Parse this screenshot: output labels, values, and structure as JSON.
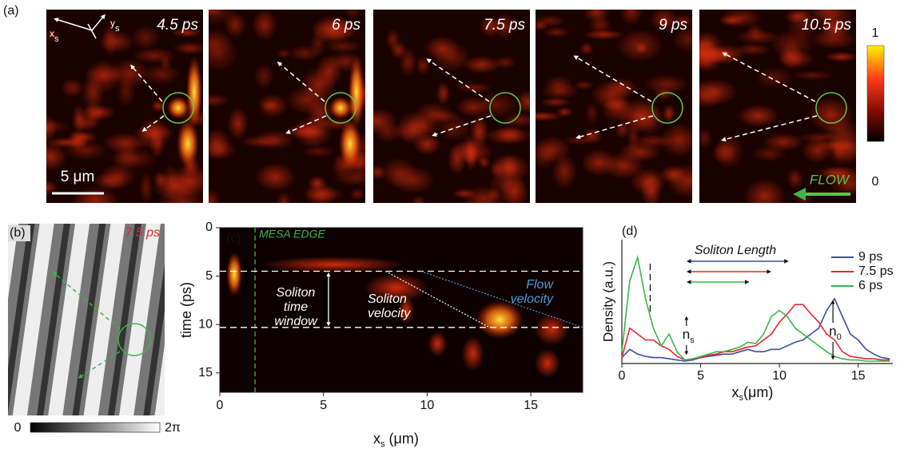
{
  "panel_a": {
    "label": "(a)",
    "frames": [
      "4.5 ps",
      "6 ps",
      "7.5 ps",
      "9 ps",
      "10.5 ps"
    ],
    "axis_x": "x",
    "axis_x_sub": "s",
    "axis_y": "y",
    "axis_y_sub": "s",
    "scale_bar": "5 μm",
    "flow": "FLOW",
    "colorbar_max": "1",
    "colorbar_min": "0"
  },
  "panel_b": {
    "label": "(b)",
    "time": "7.5 ps",
    "colorbar_min": "0",
    "colorbar_max": "2π"
  },
  "chart_data": [
    {
      "type": "heatmap",
      "label": "(c)",
      "xlabel": "x",
      "xlabel_sub": "s",
      "xlabel_unit": " (μm)",
      "ylabel": "time (ps)",
      "xlim": [
        0,
        17.5
      ],
      "xticks": [
        0,
        5,
        10,
        15
      ],
      "ylim": [
        0,
        17
      ],
      "yticks": [
        0,
        5,
        10,
        15
      ],
      "y_inverted": true,
      "mesa_edge": {
        "label": "MESA EDGE",
        "x": 1.7,
        "color": "#3cb54a"
      },
      "time_window": {
        "label": [
          "Soliton",
          "time",
          "window"
        ],
        "values": [
          4.5,
          10.3
        ]
      },
      "soliton_velocity": {
        "label": [
          "Soliton",
          "velocity"
        ],
        "x": [
          8,
          13
        ],
        "y": [
          4.5,
          10.3
        ]
      },
      "flow_velocity": {
        "label": [
          "Flow",
          "velocity"
        ],
        "x": [
          9.7,
          17.5
        ],
        "y": [
          4.5,
          10.3
        ],
        "color": "#4f9ad6"
      }
    },
    {
      "type": "line",
      "label": "(d)",
      "xlabel": "x",
      "xlabel_sub": "s",
      "xlabel_unit": "(μm)",
      "ylabel": "Density (a.u.)",
      "xlim": [
        0,
        17.2
      ],
      "xticks": [
        0,
        5,
        10,
        15
      ],
      "ylim": [
        0,
        1.05
      ],
      "legend": "upper right",
      "x": [
        0,
        0.5,
        1,
        1.5,
        2,
        2.5,
        3,
        3.5,
        4,
        4.5,
        5,
        5.5,
        6,
        6.5,
        7,
        7.5,
        8,
        8.5,
        9,
        9.5,
        10,
        10.5,
        11,
        11.5,
        12,
        12.5,
        13,
        13.5,
        14,
        14.5,
        15,
        15.5,
        16,
        16.5,
        17
      ],
      "series": [
        {
          "name": "9 ps",
          "color": "#3a4fa0",
          "values": [
            0.05,
            0.12,
            0.08,
            0.06,
            0.05,
            0.05,
            0.04,
            0.03,
            0.02,
            0.03,
            0.05,
            0.06,
            0.07,
            0.08,
            0.08,
            0.1,
            0.12,
            0.1,
            0.1,
            0.12,
            0.12,
            0.15,
            0.18,
            0.2,
            0.25,
            0.3,
            0.45,
            0.55,
            0.4,
            0.25,
            0.2,
            0.12,
            0.08,
            0.05,
            0.04
          ]
        },
        {
          "name": "7.5 ps",
          "color": "#e8262d",
          "values": [
            0.05,
            0.3,
            0.25,
            0.2,
            0.2,
            0.15,
            0.12,
            0.06,
            0.03,
            0.04,
            0.05,
            0.07,
            0.08,
            0.1,
            0.1,
            0.12,
            0.14,
            0.15,
            0.2,
            0.25,
            0.35,
            0.42,
            0.5,
            0.5,
            0.42,
            0.35,
            0.25,
            0.2,
            0.1,
            0.06,
            0.05,
            0.04,
            0.04,
            0.03,
            0.03
          ]
        },
        {
          "name": "6 ps",
          "color": "#3cb54a",
          "values": [
            0.1,
            0.7,
            0.9,
            0.55,
            0.3,
            0.15,
            0.25,
            0.1,
            0.03,
            0.04,
            0.06,
            0.08,
            0.1,
            0.1,
            0.12,
            0.14,
            0.18,
            0.17,
            0.25,
            0.4,
            0.45,
            0.4,
            0.3,
            0.25,
            0.2,
            0.15,
            0.1,
            0.06,
            0.04,
            0.03,
            0.03,
            0.02,
            0.02,
            0.02,
            0.02
          ]
        }
      ],
      "dashed_x": 1.8,
      "soliton_length": {
        "label": "Soliton Length",
        "start": 4.1,
        "ends": [
          10.6,
          9.5,
          8.1
        ]
      },
      "n_s": {
        "label": "n",
        "sub": "s",
        "x": 4.1
      },
      "n_0": {
        "label": "n",
        "sub": "0",
        "x": 13.4
      }
    }
  ]
}
